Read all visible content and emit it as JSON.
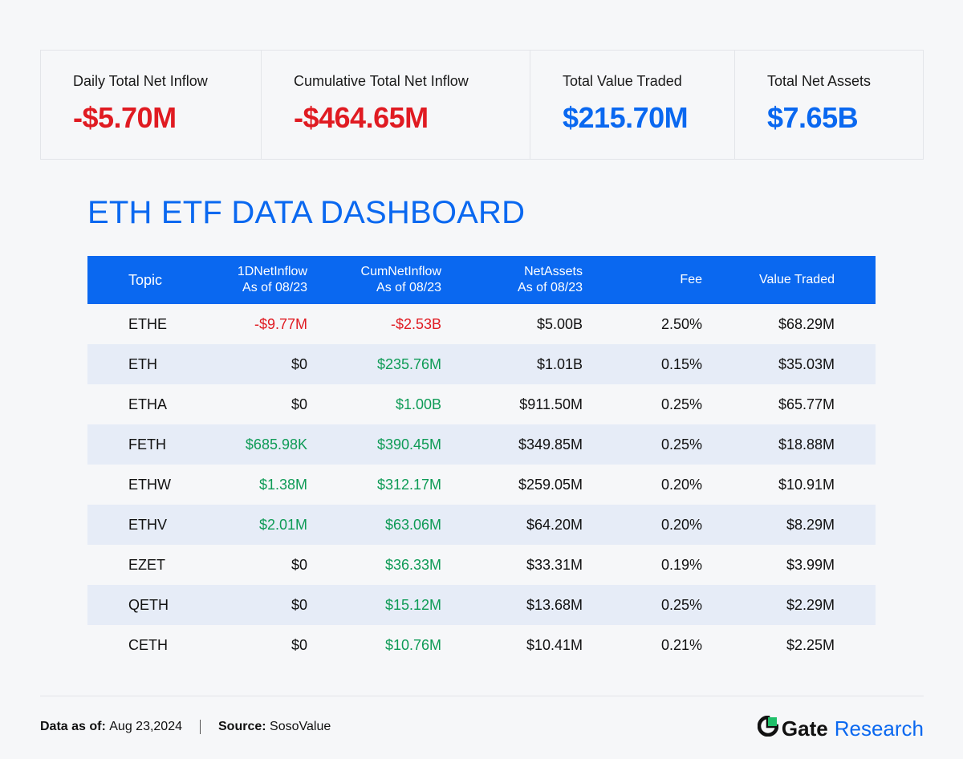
{
  "stats": [
    {
      "label": "Daily Total Net Inflow",
      "value": "-$5.70M",
      "color": "#e01b22"
    },
    {
      "label": "Cumulative Total Net Inflow",
      "value": "-$464.65M",
      "color": "#e01b22"
    },
    {
      "label": "Total Value Traded",
      "value": "$215.70M",
      "color": "#0a68f0"
    },
    {
      "label": "Total Net Assets",
      "value": "$7.65B",
      "color": "#0a68f0"
    }
  ],
  "title": "ETH ETF DATA DASHBOARD",
  "table": {
    "headers": {
      "topic": "Topic",
      "oned_1": "1DNetInflow",
      "oned_2": "As of 08/23",
      "cum_1": "CumNetInflow",
      "cum_2": "As of 08/23",
      "na_1": "NetAssets",
      "na_2": "As of 08/23",
      "fee": "Fee",
      "vt": "Value Traded"
    },
    "rows": [
      {
        "topic": "ETHE",
        "oned": "-$9.77M",
        "cum": "-$2.53B",
        "na": "$5.00B",
        "fee": "2.50%",
        "vt": "$68.29M"
      },
      {
        "topic": "ETH",
        "oned": "$0",
        "cum": "$235.76M",
        "na": "$1.01B",
        "fee": "0.15%",
        "vt": "$35.03M"
      },
      {
        "topic": "ETHA",
        "oned": "$0",
        "cum": "$1.00B",
        "na": "$911.50M",
        "fee": "0.25%",
        "vt": "$65.77M"
      },
      {
        "topic": "FETH",
        "oned": "$685.98K",
        "cum": "$390.45M",
        "na": "$349.85M",
        "fee": "0.25%",
        "vt": "$18.88M"
      },
      {
        "topic": "ETHW",
        "oned": "$1.38M",
        "cum": "$312.17M",
        "na": "$259.05M",
        "fee": "0.20%",
        "vt": "$10.91M"
      },
      {
        "topic": "ETHV",
        "oned": "$2.01M",
        "cum": "$63.06M",
        "na": "$64.20M",
        "fee": "0.20%",
        "vt": "$8.29M"
      },
      {
        "topic": "EZET",
        "oned": "$0",
        "cum": "$36.33M",
        "na": "$33.31M",
        "fee": "0.19%",
        "vt": "$3.99M"
      },
      {
        "topic": "QETH",
        "oned": "$0",
        "cum": "$15.12M",
        "na": "$13.68M",
        "fee": "0.25%",
        "vt": "$2.29M"
      },
      {
        "topic": "CETH",
        "oned": "$0",
        "cum": "$10.76M",
        "na": "$10.41M",
        "fee": "0.21%",
        "vt": "$2.25M"
      }
    ]
  },
  "footer": {
    "date_label": "Data as of:",
    "date_value": "Aug 23,2024",
    "source_label": "Source:",
    "source_value": "SosoValue"
  },
  "brand": {
    "icon": "gate-logo-icon",
    "gate": "Gate",
    "research": "Research"
  },
  "colors": {
    "accent": "#0a68f0",
    "negative": "#e01b22",
    "positive": "#0e9b56"
  }
}
